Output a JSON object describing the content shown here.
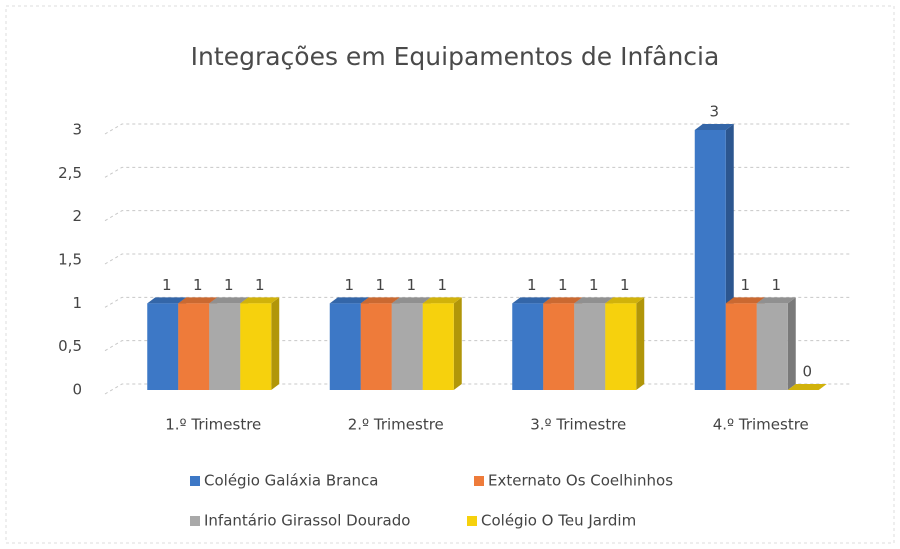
{
  "chart_data": {
    "type": "bar3d",
    "title": "Integrações em Equipamentos de Infância",
    "categories": [
      "1.º Trimestre",
      "2.º Trimestre",
      "3.º Trimestre",
      "4.º Trimestre"
    ],
    "series": [
      {
        "name": "Colégio Galáxia Branca",
        "color": "#3d78c6",
        "values": [
          1,
          1,
          1,
          3
        ]
      },
      {
        "name": "Externato Os Coelhinhos",
        "color": "#ee7b3a",
        "values": [
          1,
          1,
          1,
          1
        ]
      },
      {
        "name": "Infantário Girassol Dourado",
        "color": "#a9a9a9",
        "values": [
          1,
          1,
          1,
          1
        ]
      },
      {
        "name": "Colégio O Teu Jardim",
        "color": "#f6d10d",
        "values": [
          1,
          1,
          1,
          0
        ]
      }
    ],
    "ylim": [
      0,
      3
    ],
    "yticks": [
      0,
      {
        "value": 0.5,
        "label": "0,5"
      },
      1,
      {
        "value": 1.5,
        "label": "1,5"
      },
      2,
      {
        "value": 2.5,
        "label": "2,5"
      },
      3
    ],
    "grid": true
  }
}
